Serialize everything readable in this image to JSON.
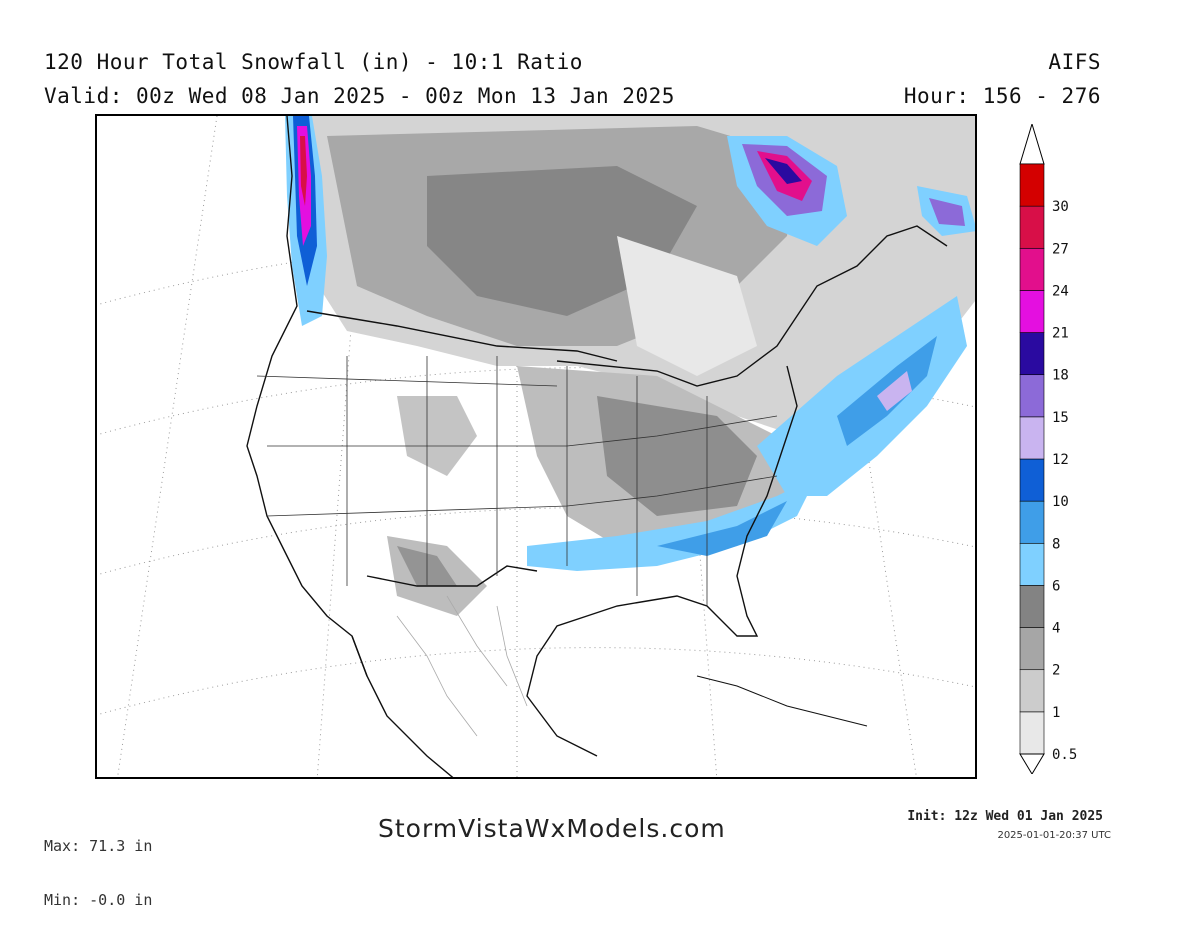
{
  "header": {
    "title": "120 Hour Total Snowfall (in) - 10:1 Ratio",
    "model": "AIFS",
    "valid": "Valid: 00z Wed 08 Jan 2025 - 00z Mon 13 Jan 2025",
    "hour": "Hour: 156 - 276"
  },
  "legend": {
    "levels": [
      {
        "label": "0.5",
        "color": "#e8e8e8"
      },
      {
        "label": "1",
        "color": "#cccccc"
      },
      {
        "label": "2",
        "color": "#a6a6a6"
      },
      {
        "label": "4",
        "color": "#838383"
      },
      {
        "label": "6",
        "color": "#7fd0ff"
      },
      {
        "label": "8",
        "color": "#3f9ee8"
      },
      {
        "label": "10",
        "color": "#0f5fd6"
      },
      {
        "label": "12",
        "color": "#c9b4f0"
      },
      {
        "label": "15",
        "color": "#8c6ad8"
      },
      {
        "label": "18",
        "color": "#2a0aa0"
      },
      {
        "label": "21",
        "color": "#e40fe0"
      },
      {
        "label": "24",
        "color": "#e20f8c"
      },
      {
        "label": "27",
        "color": "#d80f48"
      },
      {
        "label": "30",
        "color": "#d40000"
      }
    ]
  },
  "footer": {
    "max": "Max: 71.3 in",
    "min": "Min: -0.0 in",
    "site": "StormVistaWxModels.com",
    "init": "Init: 12z Wed 01 Jan 2025",
    "timestamp": "2025-01-01-20:37 UTC"
  }
}
